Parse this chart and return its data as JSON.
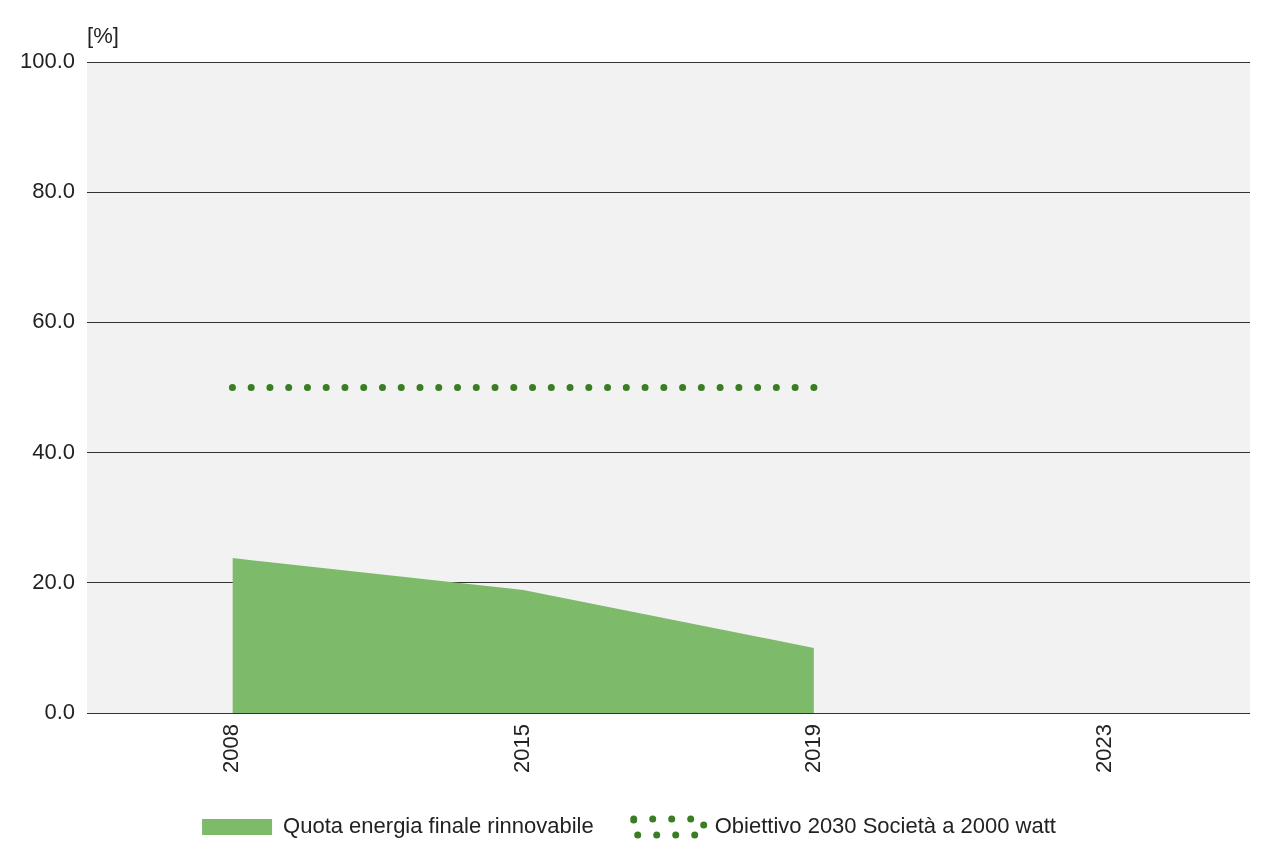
{
  "chart_data": {
    "type": "area",
    "ylabel": "[%]",
    "categories": [
      "2008",
      "2015",
      "2019",
      "2023"
    ],
    "series": [
      {
        "name": "Quota energia finale rinnovabile",
        "color": "#7dba6a",
        "values": [
          23.8,
          18.9,
          10.0,
          null
        ]
      },
      {
        "name": "Obiettivo 2030 Società a 2000 watt",
        "type": "line",
        "color": "#3a7d23",
        "line_style": "dotted",
        "values": [
          50,
          50,
          50,
          null
        ]
      }
    ],
    "ylim": [
      0,
      100
    ],
    "yticks": [
      {
        "value": 0,
        "label": "0.0"
      },
      {
        "value": 20,
        "label": "20.0"
      },
      {
        "value": 40,
        "label": "40.0"
      },
      {
        "value": 60,
        "label": "60.0"
      },
      {
        "value": 80,
        "label": "80.0"
      },
      {
        "value": 100,
        "label": "100.0"
      }
    ],
    "grid": "y",
    "legend": "bottom"
  }
}
